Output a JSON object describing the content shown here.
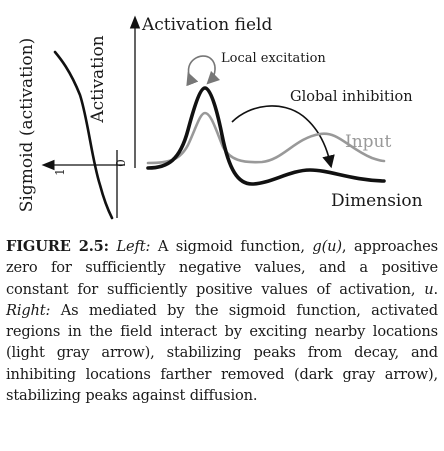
{
  "figure": {
    "left_panel": {
      "outer_label": "Sigmoid (activation)",
      "axis_label": "Activation",
      "tick_one": "1",
      "tick_zero": "0"
    },
    "right_panel": {
      "title": "Activation field",
      "local_excitation": "Local excitation",
      "global_inhibition": "Global inhibition",
      "input_label": "Input",
      "dimension_label": "Dimension"
    },
    "colors": {
      "activation_curve": "#111111",
      "input_curve": "#999999",
      "local_arrow": "#777777",
      "global_arrow": "#111111"
    }
  },
  "caption": {
    "figure_number": "FIGURE 2.5:",
    "left_word": "Left:",
    "text_1": " A sigmoid function, ",
    "g_of_u": "g(u)",
    "text_2": ", approaches zero for sufficiently negative values, and a positive constant for sufficiently positive values of activation, ",
    "u_var": "u",
    "text_3": ". ",
    "right_word": "Right:",
    "text_4": " As mediated by the sigmoid function, activated regions in the field interact by exciting nearby locations (light gray arrow), stabilizing peaks from decay, and inhibiting locations farther removed (dark gray arrow), stabilizing peaks against diffusion."
  }
}
